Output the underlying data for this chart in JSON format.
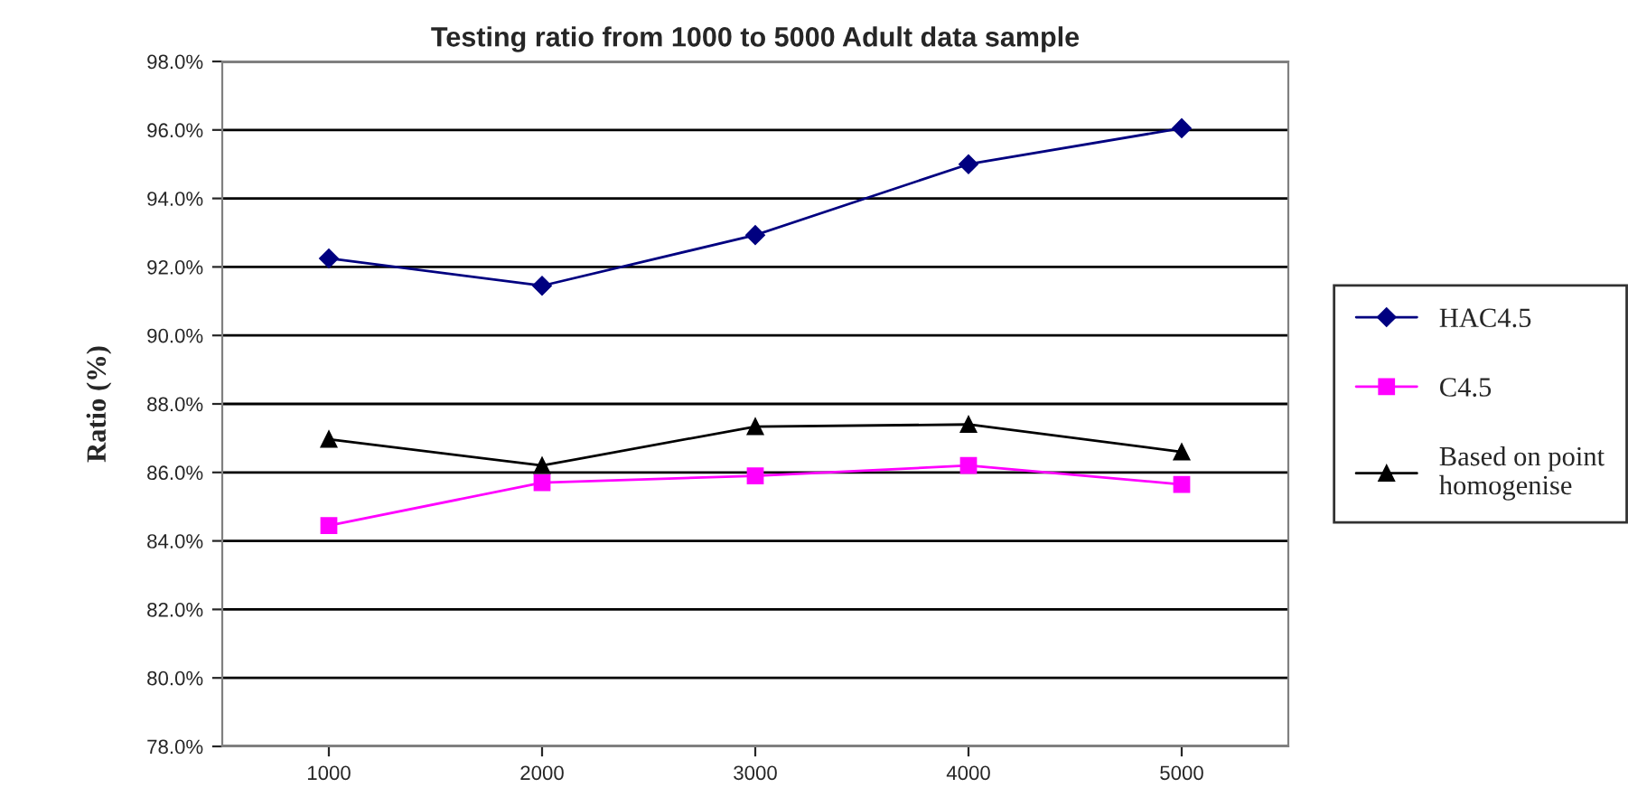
{
  "chart_data": {
    "type": "line",
    "title": "Testing ratio from 1000 to 5000 Adult data sample",
    "ylabel": "Ratio (%)",
    "categories": [
      "1000",
      "2000",
      "3000",
      "4000",
      "5000"
    ],
    "series": [
      {
        "name": "HAC4.5",
        "color": "#000080",
        "marker": "diamond",
        "values": [
          92.25,
          91.45,
          92.93,
          95.0,
          96.05
        ]
      },
      {
        "name": "C4.5",
        "color": "#ff00ff",
        "marker": "square",
        "values": [
          84.45,
          85.7,
          85.9,
          86.2,
          85.65
        ]
      },
      {
        "name": "Based on point\nhomogenise",
        "color": "#000000",
        "marker": "triangle",
        "values": [
          86.97,
          86.2,
          87.34,
          87.4,
          86.6
        ]
      }
    ],
    "ylim": [
      78,
      98
    ],
    "yticks": [
      {
        "value": 78,
        "label": "78.0%"
      },
      {
        "value": 80,
        "label": "80.0%"
      },
      {
        "value": 82,
        "label": "82.0%"
      },
      {
        "value": 84,
        "label": "84.0%"
      },
      {
        "value": 86,
        "label": "86.0%"
      },
      {
        "value": 88,
        "label": "88.0%"
      },
      {
        "value": 90,
        "label": "90.0%"
      },
      {
        "value": 92,
        "label": "92.0%"
      },
      {
        "value": 94,
        "label": "94.0%"
      },
      {
        "value": 96,
        "label": "96.0%"
      },
      {
        "value": 98,
        "label": "98.0%"
      }
    ],
    "grid": "y",
    "legend": "right",
    "line_style": "solid"
  }
}
